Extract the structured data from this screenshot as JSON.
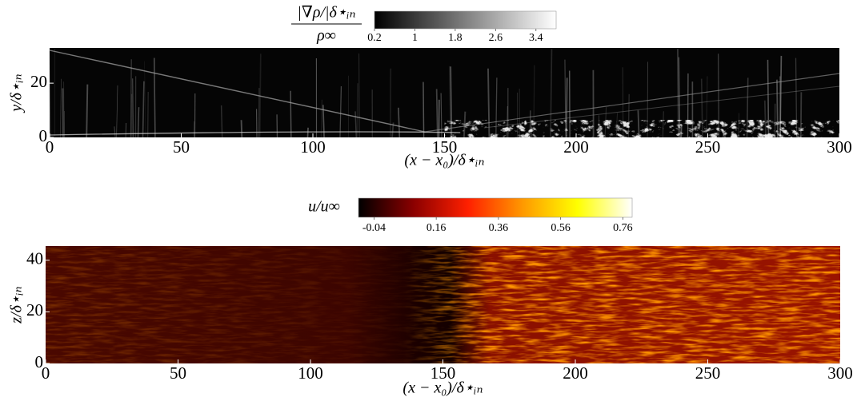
{
  "chart_data": [
    {
      "type": "heatmap",
      "xlabel": "(x − x₀)/δ⋆ᵢₙ",
      "ylabel": "y/δ⋆ᵢₙ",
      "xlim": [
        0,
        300
      ],
      "xticks": [
        0,
        50,
        100,
        150,
        200,
        250,
        300
      ],
      "ylim": [
        0,
        33
      ],
      "yticks": [
        0,
        20
      ],
      "colorbar": {
        "label": "|∇ρ/|δ⋆ᵢₙ",
        "label_denominator": "ρ∞",
        "lim": [
          0.2,
          3.8
        ],
        "ticks": [
          0.2,
          1,
          1.8,
          2.6,
          3.4
        ],
        "colors": [
          "#000000",
          "#ffffff"
        ]
      }
    },
    {
      "type": "heatmap",
      "xlabel": "(x − x₀)/δ⋆ᵢₙ",
      "ylabel": "z/δ⋆ᵢₙ",
      "xlim": [
        0,
        300
      ],
      "xticks": [
        0,
        50,
        100,
        150,
        200,
        250,
        300
      ],
      "ylim": [
        0,
        45.5
      ],
      "yticks": [
        0,
        20,
        40
      ],
      "colorbar": {
        "label": "u/u∞",
        "lim": [
          -0.09,
          0.79
        ],
        "ticks": [
          -0.04,
          0.16,
          0.36,
          0.56,
          0.76
        ],
        "colors": [
          "#000000",
          "#8a0000",
          "#ff2000",
          "#ff9900",
          "#ffff00",
          "#ffffff"
        ]
      }
    }
  ]
}
